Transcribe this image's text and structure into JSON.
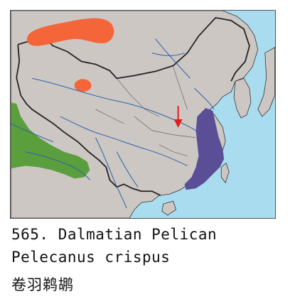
{
  "species": {
    "number_title": "565. Dalmatian Pelican",
    "scientific_name": "Pelecanus crispus",
    "chinese_name": "卷羽鹈鹕"
  },
  "legend_colors": {
    "breeding_orange": "#f4663a",
    "wintering_purple": "#5a4f96",
    "resident_green": "#5a9e3e",
    "land": "#cdc7c4",
    "sea": "#a9dcef",
    "migration_arrow": "#e01b1b"
  }
}
